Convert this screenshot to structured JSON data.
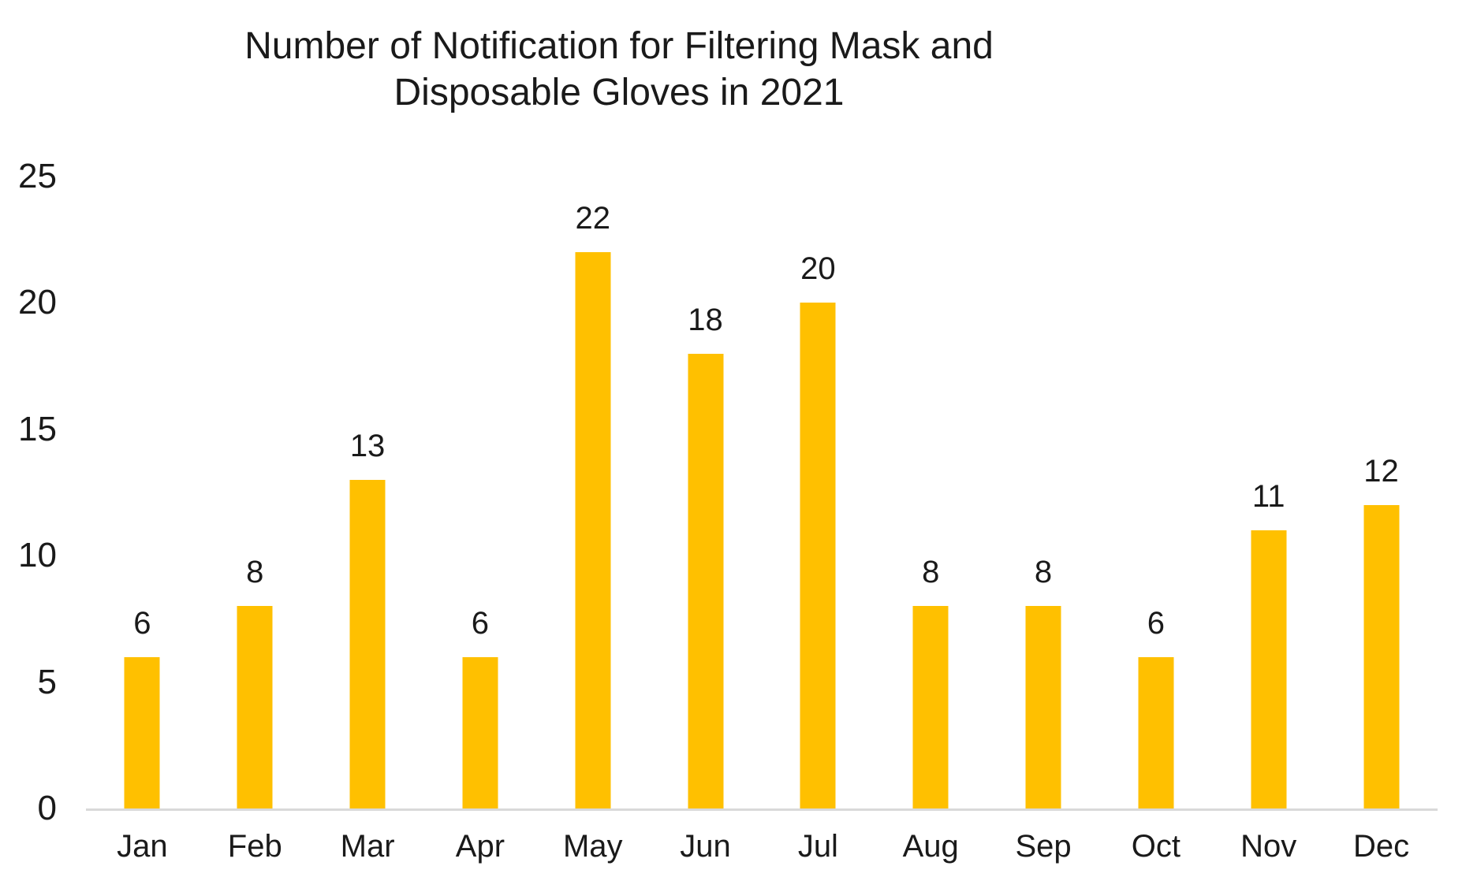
{
  "chart_data": {
    "type": "bar",
    "title": "Number of Notification for Filtering Mask and Disposable Gloves in 2021",
    "title_lines": [
      "Number of Notification for Filtering Mask and",
      "Disposable Gloves in 2021"
    ],
    "categories": [
      "Jan",
      "Feb",
      "Mar",
      "Apr",
      "May",
      "Jun",
      "Jul",
      "Aug",
      "Sep",
      "Oct",
      "Nov",
      "Dec"
    ],
    "values": [
      6,
      8,
      13,
      6,
      22,
      18,
      20,
      8,
      8,
      6,
      11,
      12
    ],
    "xlabel": "",
    "ylabel": "",
    "ylim": [
      0,
      25
    ],
    "y_ticks": [
      0,
      5,
      10,
      15,
      20,
      25
    ],
    "grid": "off",
    "legend": "none",
    "data_labels_visible": true,
    "bar_color": "#FFC000",
    "axis_line_color": "#D9D9D9",
    "text_color": "#1A1A1A",
    "background_color": "#FFFFFF"
  }
}
